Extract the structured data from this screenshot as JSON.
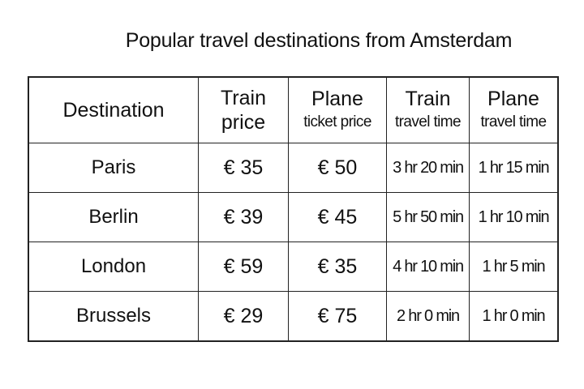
{
  "title": "Popular travel destinations from Amsterdam",
  "table": {
    "headers": [
      {
        "line1": "Destination",
        "line2": ""
      },
      {
        "line1": "Train",
        "line2": "price"
      },
      {
        "line1": "Plane",
        "line2": "ticket price"
      },
      {
        "line1": "Train",
        "line2": "travel time"
      },
      {
        "line1": "Plane",
        "line2": "travel time"
      }
    ],
    "rows": [
      [
        "Paris",
        "€ 35",
        "€ 50",
        "3 hr 20 min",
        "1 hr 15 min"
      ],
      [
        "Berlin",
        "€ 39",
        "€ 45",
        "5 hr 50 min",
        "1 hr 10 min"
      ],
      [
        "London",
        "€ 59",
        "€ 35",
        "4 hr 10 min",
        "1 hr 5 min"
      ],
      [
        "Brussels",
        "€ 29",
        "€ 75",
        "2 hr 0 min",
        "1 hr 0 min"
      ]
    ]
  }
}
